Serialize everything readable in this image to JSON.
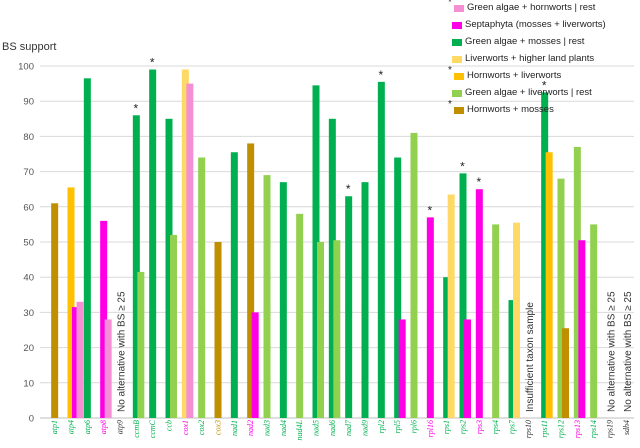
{
  "chart_data": {
    "type": "bar",
    "ylabel": "BS support",
    "ylim": [
      0,
      100
    ],
    "yticks": [
      0,
      10,
      20,
      30,
      40,
      50,
      60,
      70,
      80,
      90,
      100
    ],
    "legend": [
      {
        "name": "Green algae + hornworts | rest",
        "color": "#f48fd3",
        "star": true
      },
      {
        "name": "Septaphyta (mosses + liverworts)",
        "color": "#ff00e6",
        "star": false
      },
      {
        "name": "Green algae + mosses | rest",
        "color": "#00b050",
        "star": false
      },
      {
        "name": "Liverworts + higher land plants",
        "color": "#ffd966",
        "star": false
      },
      {
        "name": "Hornworts + liverworts",
        "color": "#ffc000",
        "star": true
      },
      {
        "name": "Green algae + liverworts | rest",
        "color": "#92d050",
        "star": false
      },
      {
        "name": "Hornworts + mosses",
        "color": "#bf8f00",
        "star": true
      }
    ],
    "genes": [
      {
        "name": "atp1",
        "color": "#00b050",
        "bars": [
          {
            "value": 61,
            "color": "#bf8f00"
          }
        ]
      },
      {
        "name": "atp4",
        "color": "#00b050",
        "bars": [
          {
            "value": 65.5,
            "color": "#ffc000"
          },
          {
            "value": 31.5,
            "color": "#ff00e6"
          },
          {
            "value": 33,
            "color": "#f48fd3"
          }
        ]
      },
      {
        "name": "atp6",
        "color": "#00b050",
        "bars": [
          {
            "value": 96.5,
            "color": "#00b050"
          }
        ]
      },
      {
        "name": "atp8",
        "color": "#ff00e6",
        "bars": [
          {
            "value": 56,
            "color": "#ff00e6"
          },
          {
            "value": 28,
            "color": "#f48fd3"
          }
        ]
      },
      {
        "name": "atp9",
        "color": "#333333",
        "bars": [],
        "note": "No alternative with BS ≥ 25"
      },
      {
        "name": "ccmB",
        "color": "#00b050",
        "bars": [
          {
            "value": 86,
            "color": "#00b050"
          },
          {
            "value": 41.5,
            "color": "#92d050"
          }
        ],
        "star": true
      },
      {
        "name": "ccmC",
        "color": "#00b050",
        "bars": [
          {
            "value": 99,
            "color": "#00b050"
          }
        ],
        "star": true
      },
      {
        "name": "ccb",
        "color": "#00b050",
        "bars": [
          {
            "value": 85,
            "color": "#00b050"
          },
          {
            "value": 52,
            "color": "#92d050"
          }
        ]
      },
      {
        "name": "cox1",
        "color": "#ff00e6",
        "bars": [
          {
            "value": 99,
            "color": "#ffd966"
          },
          {
            "value": 95,
            "color": "#f48fd3"
          }
        ]
      },
      {
        "name": "cox2",
        "color": "#00b050",
        "bars": [
          {
            "value": 74,
            "color": "#92d050"
          }
        ]
      },
      {
        "name": "cox3",
        "color": "#bf8f00",
        "bars": [
          {
            "value": 50,
            "color": "#bf8f00"
          }
        ]
      },
      {
        "name": "nad1",
        "color": "#00b050",
        "bars": [
          {
            "value": 75.5,
            "color": "#00b050"
          }
        ]
      },
      {
        "name": "nad2",
        "color": "#ff00e6",
        "bars": [
          {
            "value": 78,
            "color": "#bf8f00"
          },
          {
            "value": 30,
            "color": "#ff00e6"
          }
        ]
      },
      {
        "name": "nad3",
        "color": "#00b050",
        "bars": [
          {
            "value": 69,
            "color": "#92d050"
          }
        ]
      },
      {
        "name": "nad4",
        "color": "#00b050",
        "bars": [
          {
            "value": 67,
            "color": "#00b050"
          }
        ]
      },
      {
        "name": "nad4L",
        "color": "#00b050",
        "bars": [
          {
            "value": 58,
            "color": "#92d050"
          }
        ]
      },
      {
        "name": "nad5",
        "color": "#00b050",
        "bars": [
          {
            "value": 94.5,
            "color": "#00b050"
          },
          {
            "value": 50,
            "color": "#92d050"
          }
        ]
      },
      {
        "name": "nad6",
        "color": "#00b050",
        "bars": [
          {
            "value": 85,
            "color": "#00b050"
          },
          {
            "value": 50.5,
            "color": "#92d050"
          }
        ]
      },
      {
        "name": "nad7",
        "color": "#00b050",
        "bars": [
          {
            "value": 63,
            "color": "#00b050"
          }
        ],
        "star": true
      },
      {
        "name": "nad9",
        "color": "#00b050",
        "bars": [
          {
            "value": 67,
            "color": "#00b050"
          }
        ]
      },
      {
        "name": "rpl2",
        "color": "#00b050",
        "bars": [
          {
            "value": 95.5,
            "color": "#00b050"
          }
        ],
        "star": true
      },
      {
        "name": "rpl5",
        "color": "#00b050",
        "bars": [
          {
            "value": 74,
            "color": "#00b050"
          },
          {
            "value": 28,
            "color": "#ff00e6"
          }
        ]
      },
      {
        "name": "rpl6",
        "color": "#00b050",
        "bars": [
          {
            "value": 81,
            "color": "#92d050"
          }
        ]
      },
      {
        "name": "rpl16",
        "color": "#ff00e6",
        "bars": [
          {
            "value": 57,
            "color": "#ff00e6"
          }
        ],
        "star": true
      },
      {
        "name": "rps1",
        "color": "#00b050",
        "bars": [
          {
            "value": 40,
            "color": "#00b050"
          },
          {
            "value": 63.5,
            "color": "#ffd966"
          }
        ]
      },
      {
        "name": "rps2",
        "color": "#00b050",
        "bars": [
          {
            "value": 69.5,
            "color": "#00b050"
          },
          {
            "value": 28,
            "color": "#ff00e6"
          }
        ],
        "star": true
      },
      {
        "name": "rps3",
        "color": "#ff00e6",
        "bars": [
          {
            "value": 65,
            "color": "#ff00e6"
          }
        ],
        "star": true
      },
      {
        "name": "rps4",
        "color": "#00b050",
        "bars": [
          {
            "value": 55,
            "color": "#92d050"
          }
        ]
      },
      {
        "name": "rps7",
        "color": "#00b050",
        "bars": [
          {
            "value": 33.5,
            "color": "#00b050"
          },
          {
            "value": 55.5,
            "color": "#ffd966"
          }
        ]
      },
      {
        "name": "rps10",
        "color": "#333333",
        "bars": [],
        "note": "Insufficient taxon sample"
      },
      {
        "name": "rps11",
        "color": "#00b050",
        "bars": [
          {
            "value": 92.5,
            "color": "#00b050"
          },
          {
            "value": 75.5,
            "color": "#ffc000"
          }
        ],
        "star": true
      },
      {
        "name": "rps12",
        "color": "#00b050",
        "bars": [
          {
            "value": 68,
            "color": "#92d050"
          },
          {
            "value": 25.5,
            "color": "#bf8f00"
          }
        ]
      },
      {
        "name": "rps13",
        "color": "#ff00e6",
        "bars": [
          {
            "value": 77,
            "color": "#92d050"
          },
          {
            "value": 50.5,
            "color": "#ff00e6"
          }
        ]
      },
      {
        "name": "rps14",
        "color": "#00b050",
        "bars": [
          {
            "value": 55,
            "color": "#92d050"
          }
        ]
      },
      {
        "name": "rps19",
        "color": "#333333",
        "bars": [],
        "note": "No alternative with BS ≥ 25"
      },
      {
        "name": "sdh4",
        "color": "#333333",
        "bars": [],
        "note": "No alternative with BS ≥ 25"
      }
    ]
  }
}
